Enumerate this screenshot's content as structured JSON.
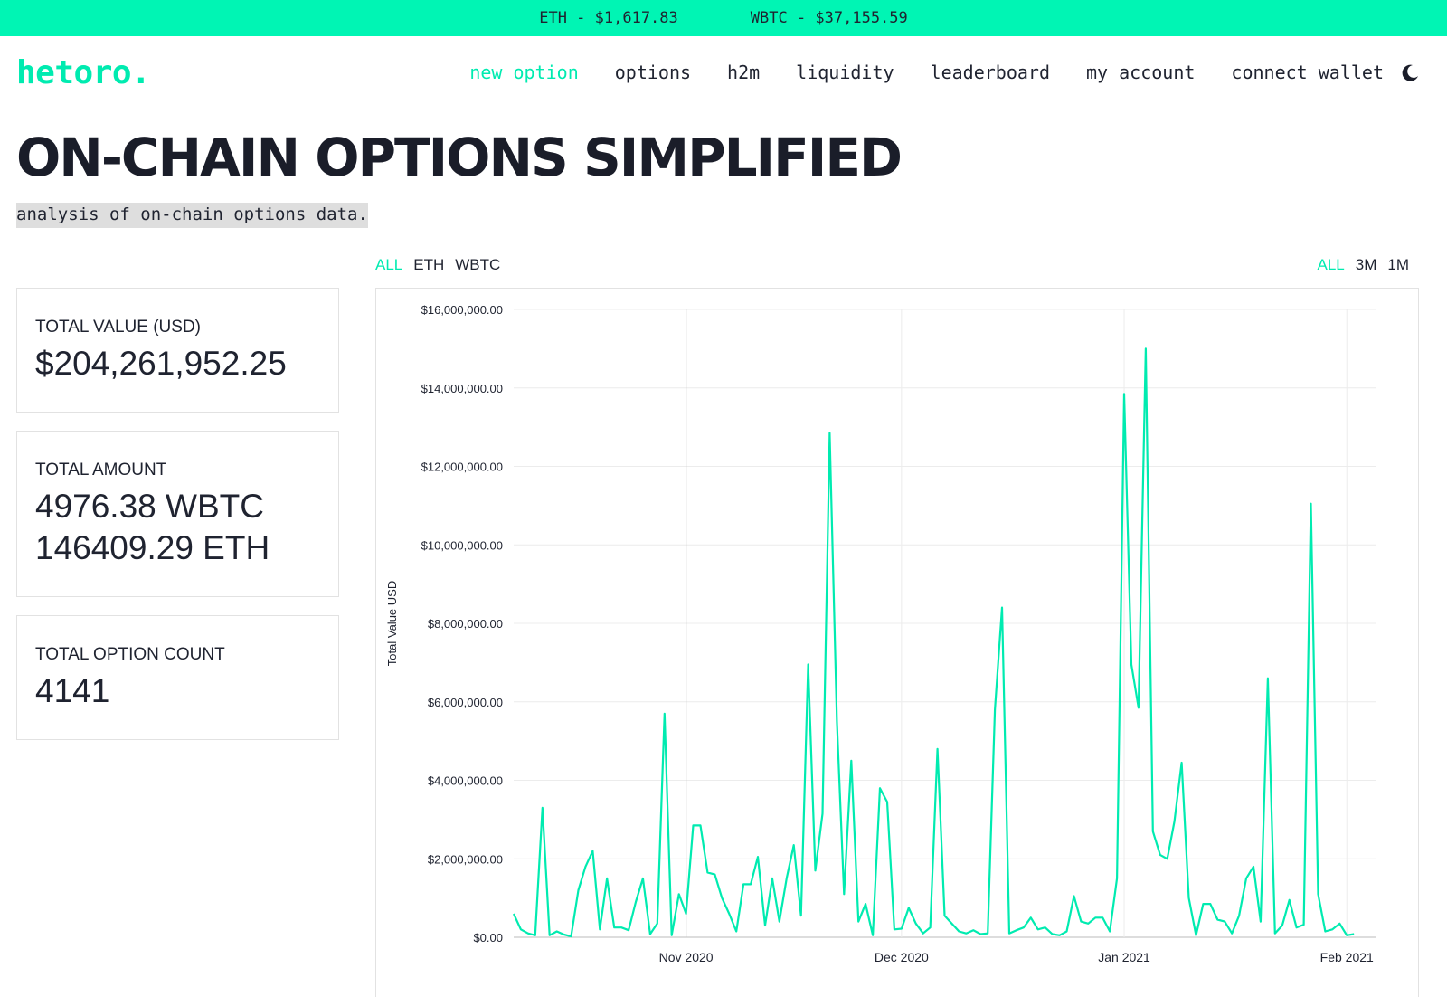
{
  "ticker": {
    "eth": "ETH - $1,617.83",
    "wbtc": "WBTC - $37,155.59"
  },
  "nav": {
    "logo": "hetoro.",
    "items": [
      "new option",
      "options",
      "h2m",
      "liquidity",
      "leaderboard",
      "my account",
      "connect wallet"
    ],
    "active_index": 0,
    "theme_icon": "moon-icon"
  },
  "hero": {
    "title": "ON-CHAIN OPTIONS SIMPLIFIED",
    "subtitle": "analysis of on-chain options data."
  },
  "filters": {
    "asset": {
      "options": [
        "ALL",
        "ETH",
        "WBTC"
      ],
      "selected": "ALL"
    },
    "range": {
      "options": [
        "ALL",
        "3M",
        "1M"
      ],
      "selected": "ALL"
    }
  },
  "cards": {
    "total_value": {
      "label": "TOTAL VALUE (USD)",
      "value": "$204,261,952.25"
    },
    "total_amount": {
      "label": "TOTAL AMOUNT",
      "wbtc": "4976.38 WBTC",
      "eth": "146409.29 ETH"
    },
    "total_count": {
      "label": "TOTAL OPTION COUNT",
      "value": "4141"
    }
  },
  "colors": {
    "accent": "#00ebb0",
    "ticker_bg": "#00f5b4",
    "text": "#1f2330"
  },
  "chart_data": {
    "type": "line",
    "ylabel": "Total Value USD",
    "ylim": [
      0,
      16000000
    ],
    "yticks": [
      {
        "value": 0,
        "label": "$0.00"
      },
      {
        "value": 2000000,
        "label": "$2,000,000.00"
      },
      {
        "value": 4000000,
        "label": "$4,000,000.00"
      },
      {
        "value": 6000000,
        "label": "$6,000,000.00"
      },
      {
        "value": 8000000,
        "label": "$8,000,000.00"
      },
      {
        "value": 10000000,
        "label": "$10,000,000.00"
      },
      {
        "value": 12000000,
        "label": "$12,000,000.00"
      },
      {
        "value": 14000000,
        "label": "$14,000,000.00"
      },
      {
        "value": 16000000,
        "label": "$16,000,000.00"
      }
    ],
    "xlim": [
      "2020-10-08",
      "2021-02-05"
    ],
    "xticks": [
      {
        "date": "2020-11-01",
        "label": "Nov 2020"
      },
      {
        "date": "2020-12-01",
        "label": "Dec 2020"
      },
      {
        "date": "2021-01-01",
        "label": "Jan 2021"
      },
      {
        "date": "2021-02-01",
        "label": "Feb 2021"
      }
    ],
    "grid": true,
    "series": [
      {
        "points": [
          [
            "2020-10-08",
            600000
          ],
          [
            "2020-10-09",
            200000
          ],
          [
            "2020-10-10",
            100000
          ],
          [
            "2020-10-11",
            50000
          ],
          [
            "2020-10-12",
            3300000
          ],
          [
            "2020-10-13",
            50000
          ],
          [
            "2020-10-14",
            150000
          ],
          [
            "2020-10-15",
            70000
          ],
          [
            "2020-10-16",
            20000
          ],
          [
            "2020-10-17",
            1200000
          ],
          [
            "2020-10-18",
            1800000
          ],
          [
            "2020-10-19",
            2200000
          ],
          [
            "2020-10-20",
            200000
          ],
          [
            "2020-10-21",
            1500000
          ],
          [
            "2020-10-22",
            250000
          ],
          [
            "2020-10-23",
            250000
          ],
          [
            "2020-10-24",
            180000
          ],
          [
            "2020-10-25",
            900000
          ],
          [
            "2020-10-26",
            1500000
          ],
          [
            "2020-10-27",
            80000
          ],
          [
            "2020-10-28",
            350000
          ],
          [
            "2020-10-29",
            5700000
          ],
          [
            "2020-10-30",
            50000
          ],
          [
            "2020-10-31",
            1100000
          ],
          [
            "2020-11-01",
            600000
          ],
          [
            "2020-11-02",
            2850000
          ],
          [
            "2020-11-03",
            2850000
          ],
          [
            "2020-11-04",
            1650000
          ],
          [
            "2020-11-05",
            1600000
          ],
          [
            "2020-11-06",
            1000000
          ],
          [
            "2020-11-07",
            600000
          ],
          [
            "2020-11-08",
            150000
          ],
          [
            "2020-11-09",
            1350000
          ],
          [
            "2020-11-10",
            1350000
          ],
          [
            "2020-11-11",
            2050000
          ],
          [
            "2020-11-12",
            300000
          ],
          [
            "2020-11-13",
            1500000
          ],
          [
            "2020-11-14",
            400000
          ],
          [
            "2020-11-15",
            1500000
          ],
          [
            "2020-11-16",
            2350000
          ],
          [
            "2020-11-17",
            550000
          ],
          [
            "2020-11-18",
            6950000
          ],
          [
            "2020-11-19",
            1700000
          ],
          [
            "2020-11-20",
            3150000
          ],
          [
            "2020-11-21",
            12850000
          ],
          [
            "2020-11-22",
            5500000
          ],
          [
            "2020-11-23",
            1100000
          ],
          [
            "2020-11-24",
            4500000
          ],
          [
            "2020-11-25",
            400000
          ],
          [
            "2020-11-26",
            850000
          ],
          [
            "2020-11-27",
            50000
          ],
          [
            "2020-11-28",
            3800000
          ],
          [
            "2020-11-29",
            3450000
          ],
          [
            "2020-11-30",
            200000
          ],
          [
            "2020-12-01",
            220000
          ],
          [
            "2020-12-02",
            750000
          ],
          [
            "2020-12-03",
            350000
          ],
          [
            "2020-12-04",
            100000
          ],
          [
            "2020-12-05",
            250000
          ],
          [
            "2020-12-06",
            4800000
          ],
          [
            "2020-12-07",
            550000
          ],
          [
            "2020-12-08",
            350000
          ],
          [
            "2020-12-09",
            150000
          ],
          [
            "2020-12-10",
            100000
          ],
          [
            "2020-12-11",
            180000
          ],
          [
            "2020-12-12",
            80000
          ],
          [
            "2020-12-13",
            100000
          ],
          [
            "2020-12-14",
            5800000
          ],
          [
            "2020-12-15",
            8400000
          ],
          [
            "2020-12-16",
            100000
          ],
          [
            "2020-12-17",
            180000
          ],
          [
            "2020-12-18",
            250000
          ],
          [
            "2020-12-19",
            500000
          ],
          [
            "2020-12-20",
            200000
          ],
          [
            "2020-12-21",
            250000
          ],
          [
            "2020-12-22",
            80000
          ],
          [
            "2020-12-23",
            50000
          ],
          [
            "2020-12-24",
            150000
          ],
          [
            "2020-12-25",
            1050000
          ],
          [
            "2020-12-26",
            400000
          ],
          [
            "2020-12-27",
            350000
          ],
          [
            "2020-12-28",
            500000
          ],
          [
            "2020-12-29",
            500000
          ],
          [
            "2020-12-30",
            150000
          ],
          [
            "2020-12-31",
            1500000
          ],
          [
            "2021-01-01",
            13850000
          ],
          [
            "2021-01-02",
            6950000
          ],
          [
            "2021-01-03",
            5850000
          ],
          [
            "2021-01-04",
            15000000
          ],
          [
            "2021-01-05",
            2700000
          ],
          [
            "2021-01-06",
            2100000
          ],
          [
            "2021-01-07",
            2000000
          ],
          [
            "2021-01-08",
            2950000
          ],
          [
            "2021-01-09",
            4450000
          ],
          [
            "2021-01-10",
            1000000
          ],
          [
            "2021-01-11",
            50000
          ],
          [
            "2021-01-12",
            850000
          ],
          [
            "2021-01-13",
            850000
          ],
          [
            "2021-01-14",
            450000
          ],
          [
            "2021-01-15",
            400000
          ],
          [
            "2021-01-16",
            100000
          ],
          [
            "2021-01-17",
            550000
          ],
          [
            "2021-01-18",
            1500000
          ],
          [
            "2021-01-19",
            1800000
          ],
          [
            "2021-01-20",
            400000
          ],
          [
            "2021-01-21",
            6600000
          ],
          [
            "2021-01-22",
            100000
          ],
          [
            "2021-01-23",
            300000
          ],
          [
            "2021-01-24",
            950000
          ],
          [
            "2021-01-25",
            250000
          ],
          [
            "2021-01-26",
            320000
          ],
          [
            "2021-01-27",
            11050000
          ],
          [
            "2021-01-28",
            1100000
          ],
          [
            "2021-01-29",
            150000
          ],
          [
            "2021-01-30",
            200000
          ],
          [
            "2021-01-31",
            350000
          ],
          [
            "2021-02-01",
            50000
          ],
          [
            "2021-02-02",
            80000
          ]
        ]
      }
    ]
  }
}
